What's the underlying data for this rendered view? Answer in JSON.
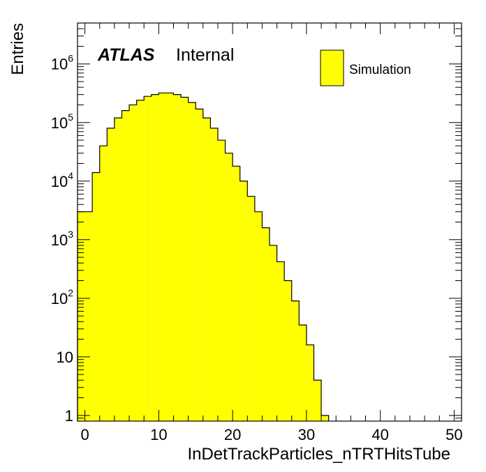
{
  "chart_data": {
    "type": "bar",
    "xlabel": "InDetTrackParticles_nTRTHitsTube",
    "ylabel": "Entries",
    "x_range": [
      -1,
      51
    ],
    "y_range": [
      0.8,
      5000000
    ],
    "y_scale": "log",
    "x_ticks": [
      0,
      10,
      20,
      30,
      40,
      50
    ],
    "x_tick_labels": [
      "0",
      "10",
      "20",
      "30",
      "40",
      "50"
    ],
    "y_ticks": [
      {
        "value": 1,
        "base": "1",
        "exp": ""
      },
      {
        "value": 10,
        "base": "10",
        "exp": ""
      },
      {
        "value": 100,
        "base": "10",
        "exp": "2"
      },
      {
        "value": 1000,
        "base": "10",
        "exp": "3"
      },
      {
        "value": 10000,
        "base": "10",
        "exp": "4"
      },
      {
        "value": 100000,
        "base": "10",
        "exp": "5"
      },
      {
        "value": 1000000,
        "base": "10",
        "exp": "6"
      }
    ],
    "bin_edges_start": -1,
    "bin_width": 1,
    "values": [
      3000,
      3000,
      14000,
      40000,
      80000,
      120000,
      160000,
      200000,
      240000,
      280000,
      300000,
      320000,
      320000,
      300000,
      270000,
      220000,
      170000,
      120000,
      80000,
      50000,
      30000,
      18000,
      10000,
      5500,
      3000,
      1600,
      800,
      420,
      200,
      90,
      35,
      16,
      4,
      1
    ],
    "fill_color": "#ffff00",
    "line_color": "#000000",
    "grid": false,
    "legend": {
      "position": "top-right",
      "entries": [
        {
          "name": "Simulation",
          "color": "#ffff00"
        }
      ]
    },
    "annotation": {
      "experiment": "ATLAS",
      "label": "Internal"
    }
  }
}
